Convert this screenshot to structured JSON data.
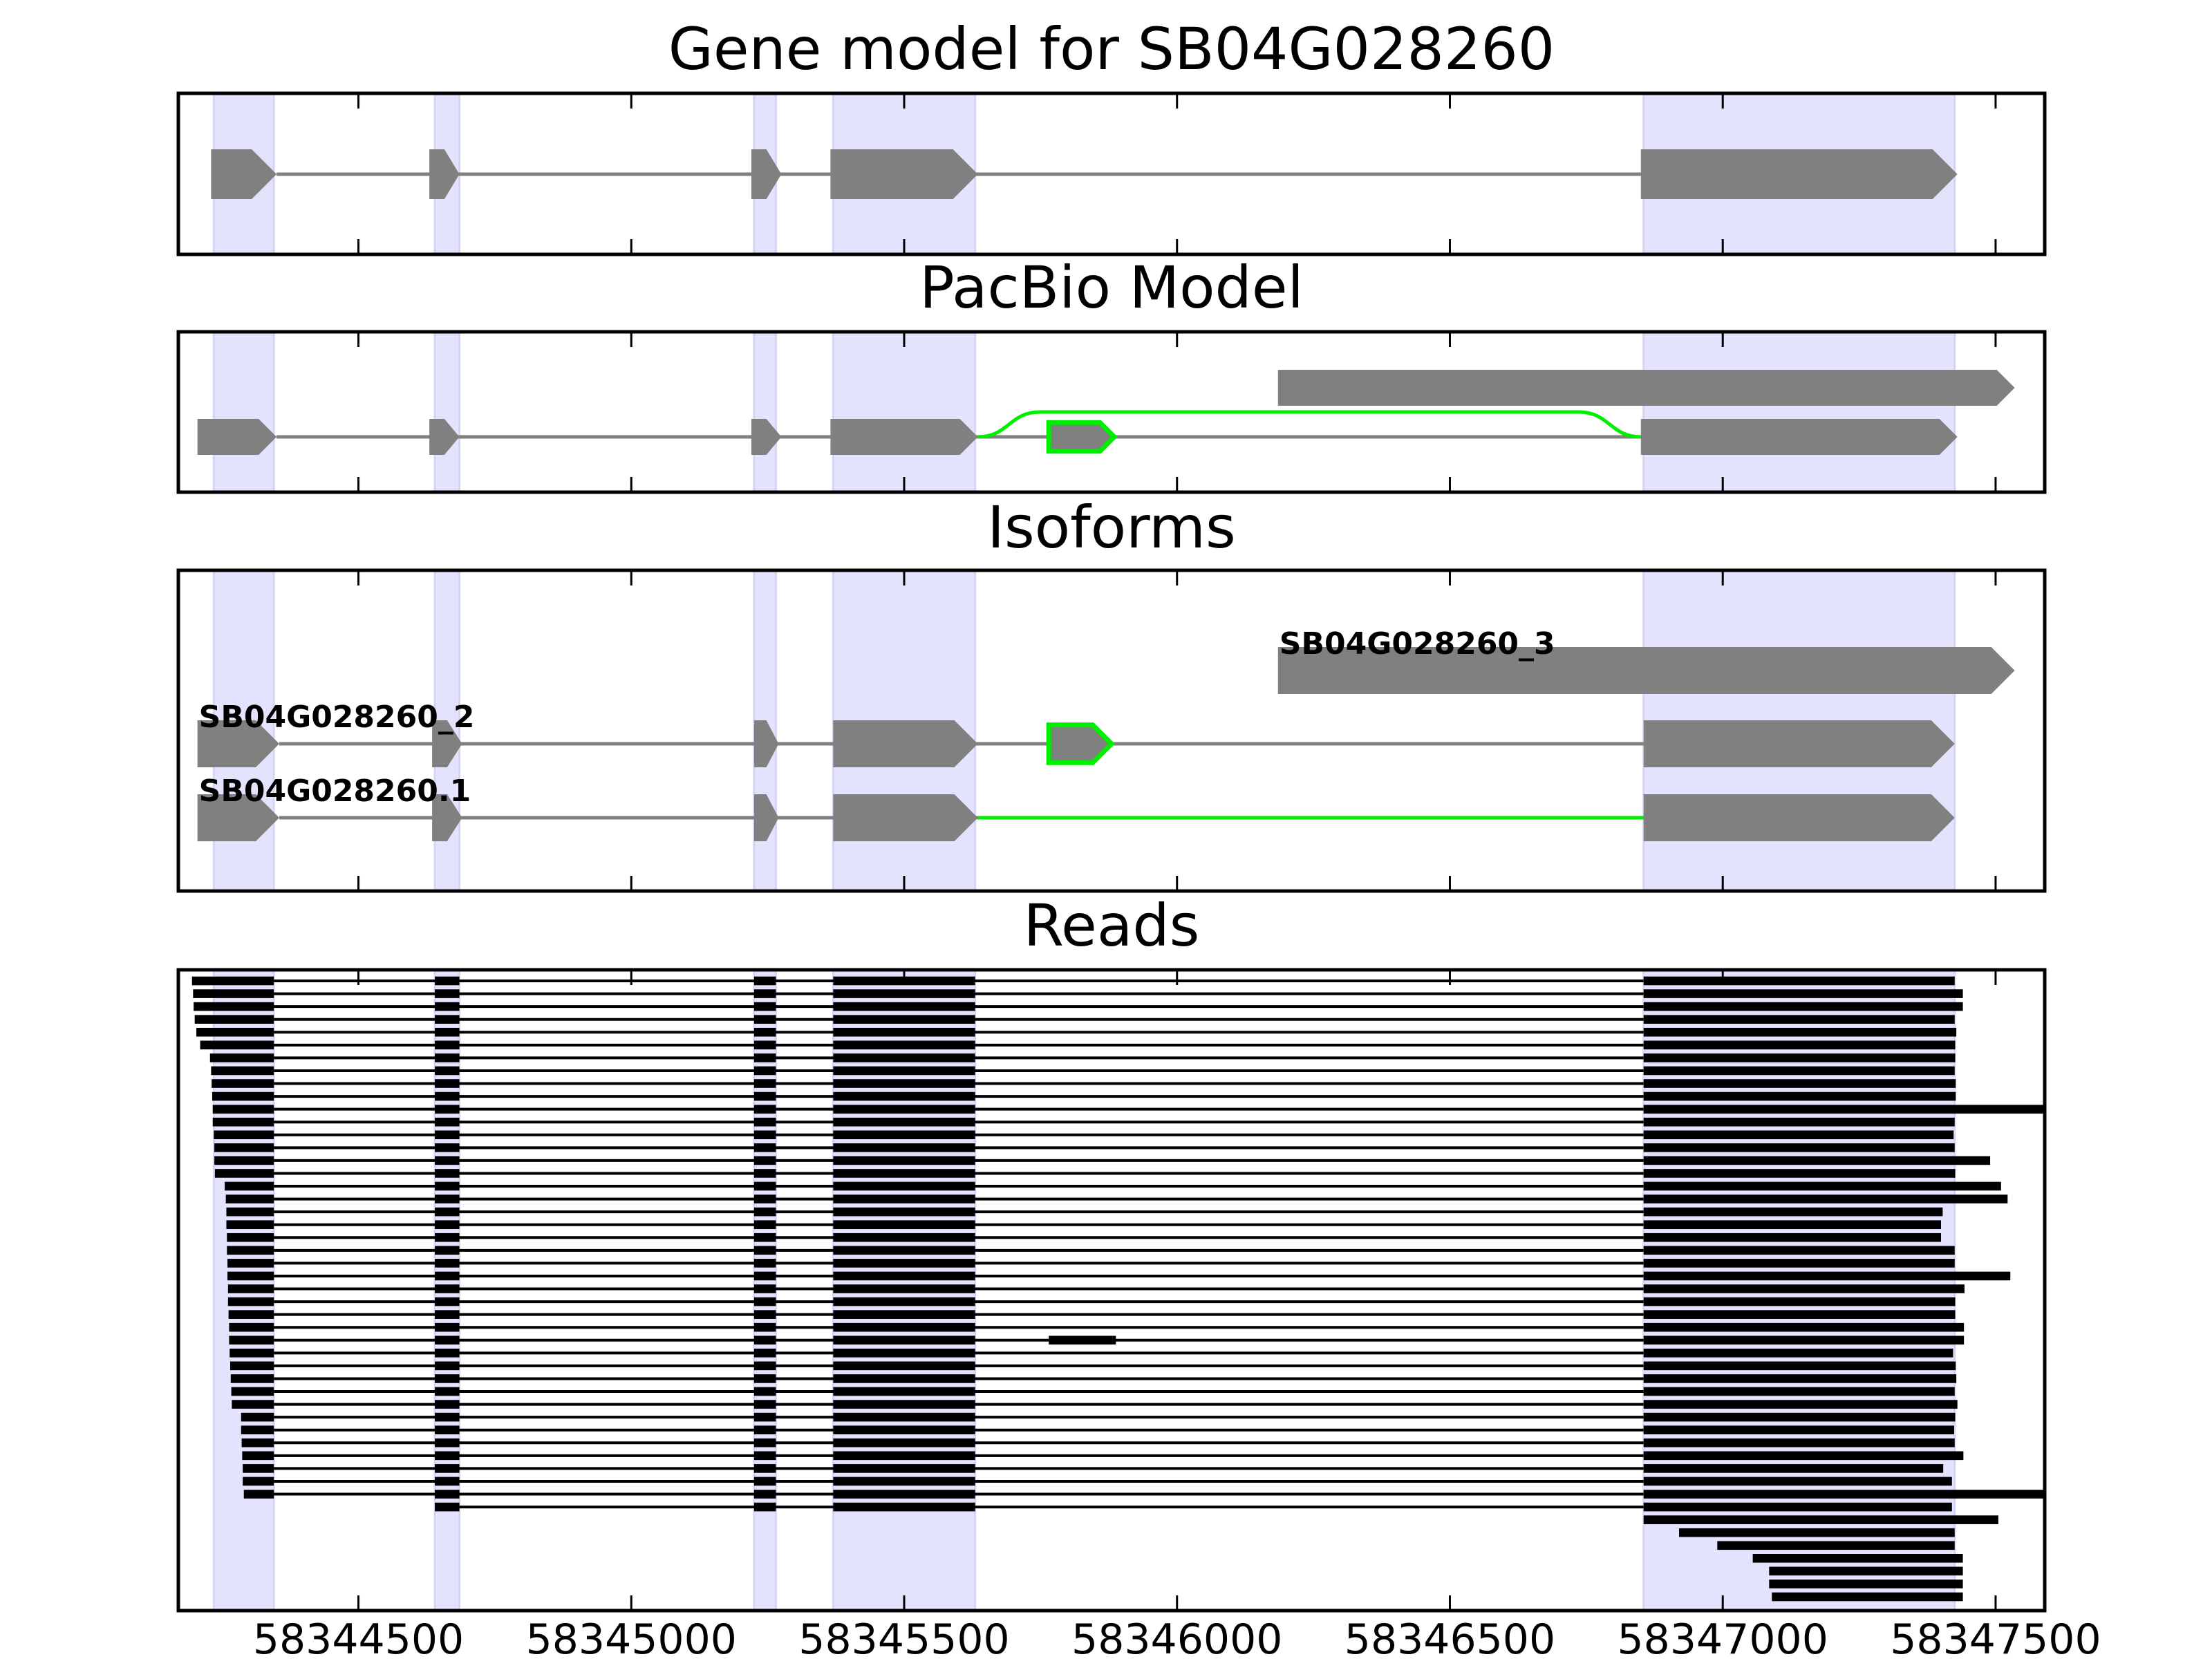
{
  "chart_data": {
    "type": "gene-structure",
    "xlim": [
      58344170,
      58347590
    ],
    "x_ticks": [
      58344500,
      58345000,
      58345500,
      58346000,
      58346500,
      58347000,
      58347500
    ],
    "x_tick_labels": [
      "58344500",
      "58345000",
      "58345500",
      "58346000",
      "58346500",
      "58347000",
      "58347500"
    ],
    "exon_highlights": [
      [
        58344235,
        58344345
      ],
      [
        58344640,
        58344685
      ],
      [
        58345225,
        58345265
      ],
      [
        58345370,
        58345630
      ],
      [
        58346855,
        58347425
      ]
    ],
    "colors": {
      "highlight": "#e3e3fd",
      "exon": "#808080",
      "intron": "#808080",
      "novel": "#00ee00",
      "read": "#000000"
    },
    "panels": [
      {
        "title": "Gene model for SB04G028260",
        "rows": 1,
        "features": [
          {
            "row": 0,
            "exons": [
              [
                58344230,
                58344350
              ],
              [
                58344630,
                58344685
              ],
              [
                58345220,
                58345275
              ],
              [
                58345365,
                58345635
              ],
              [
                58346850,
                58347430
              ]
            ],
            "novel_exons": [],
            "novel_introns": []
          }
        ]
      },
      {
        "title": "PacBio Model",
        "rows": 2,
        "features": [
          {
            "row": 1,
            "exons": [
              [
                58346185,
                58347535
              ]
            ],
            "novel_exons": [],
            "novel_introns": []
          },
          {
            "row": 0,
            "exons": [
              [
                58344205,
                58344350
              ],
              [
                58344630,
                58344685
              ],
              [
                58345220,
                58345275
              ],
              [
                58345365,
                58345635
              ],
              [
                58346850,
                58347430
              ]
            ],
            "novel_exons": [
              [
                58345765,
                58345885
              ]
            ],
            "novel_introns": [
              [
                58345635,
                58346850
              ]
            ]
          }
        ]
      },
      {
        "title": "Isoforms",
        "rows": 3,
        "features": [
          {
            "row": 2,
            "label": "SB04G028260_3",
            "exons": [
              [
                58346185,
                58347535
              ]
            ],
            "novel_exons": [],
            "novel_introns": []
          },
          {
            "row": 1,
            "label": "SB04G028260_2",
            "exons": [
              [
                58344205,
                58344355
              ],
              [
                58344635,
                58344690
              ],
              [
                58345225,
                58345270
              ],
              [
                58345370,
                58345635
              ],
              [
                58346855,
                58347425
              ]
            ],
            "novel_exons": [
              [
                58345765,
                58345880
              ]
            ],
            "novel_introns": []
          },
          {
            "row": 0,
            "label": "SB04G028260.1",
            "exons": [
              [
                58344205,
                58344355
              ],
              [
                58344635,
                58344690
              ],
              [
                58345225,
                58345270
              ],
              [
                58345370,
                58345635
              ],
              [
                58346855,
                58347425
              ]
            ],
            "novel_exons": [],
            "novel_introns": [
              [
                58345635,
                58346855
              ]
            ]
          }
        ]
      },
      {
        "title": "Reads",
        "rows": 53,
        "reads": [
          {
            "start": 58344195,
            "end": 58347425
          },
          {
            "start": 58344197,
            "end": 58347440
          },
          {
            "start": 58344198,
            "end": 58347440
          },
          {
            "start": 58344200,
            "end": 58347425
          },
          {
            "start": 58344203,
            "end": 58347428
          },
          {
            "start": 58344210,
            "end": 58347426
          },
          {
            "start": 58344228,
            "end": 58347426
          },
          {
            "start": 58344230,
            "end": 58347425
          },
          {
            "start": 58344231,
            "end": 58347427
          },
          {
            "start": 58344232,
            "end": 58347427
          },
          {
            "start": 58344233,
            "end": 58347590
          },
          {
            "start": 58344233,
            "end": 58347425
          },
          {
            "start": 58344235,
            "end": 58347423
          },
          {
            "start": 58344236,
            "end": 58347425
          },
          {
            "start": 58344236,
            "end": 58347490
          },
          {
            "start": 58344237,
            "end": 58347426
          },
          {
            "start": 58344255,
            "end": 58347510
          },
          {
            "start": 58344257,
            "end": 58347522
          },
          {
            "start": 58344258,
            "end": 58347403
          },
          {
            "start": 58344258,
            "end": 58347400
          },
          {
            "start": 58344259,
            "end": 58347400
          },
          {
            "start": 58344259,
            "end": 58347425
          },
          {
            "start": 58344260,
            "end": 58347425
          },
          {
            "start": 58344260,
            "end": 58347527
          },
          {
            "start": 58344261,
            "end": 58347443
          },
          {
            "start": 58344261,
            "end": 58347426
          },
          {
            "start": 58344262,
            "end": 58347426
          },
          {
            "start": 58344263,
            "end": 58347442
          },
          {
            "start": 58344263,
            "end": 58347442,
            "extra": [
              58345765,
              58345888
            ]
          },
          {
            "start": 58344264,
            "end": 58347422
          },
          {
            "start": 58344265,
            "end": 58347427
          },
          {
            "start": 58344266,
            "end": 58347428
          },
          {
            "start": 58344267,
            "end": 58347425
          },
          {
            "start": 58344268,
            "end": 58347430
          },
          {
            "start": 58344285,
            "end": 58347426
          },
          {
            "start": 58344285,
            "end": 58347424
          },
          {
            "start": 58344286,
            "end": 58347425
          },
          {
            "start": 58344287,
            "end": 58347441
          },
          {
            "start": 58344288,
            "end": 58347404
          },
          {
            "start": 58344288,
            "end": 58347420
          },
          {
            "start": 58344290,
            "end": 58347590
          },
          {
            "start": 58344640,
            "end": 58347420
          },
          {
            "start": 58346180,
            "end": 58347505
          },
          {
            "start": 58346920,
            "end": 58347425
          },
          {
            "start": 58346990,
            "end": 58347425
          },
          {
            "start": 58347055,
            "end": 58347440
          },
          {
            "start": 58347085,
            "end": 58347440
          },
          {
            "start": 58347085,
            "end": 58347440
          },
          {
            "start": 58347090,
            "end": 58347440
          }
        ]
      }
    ]
  }
}
